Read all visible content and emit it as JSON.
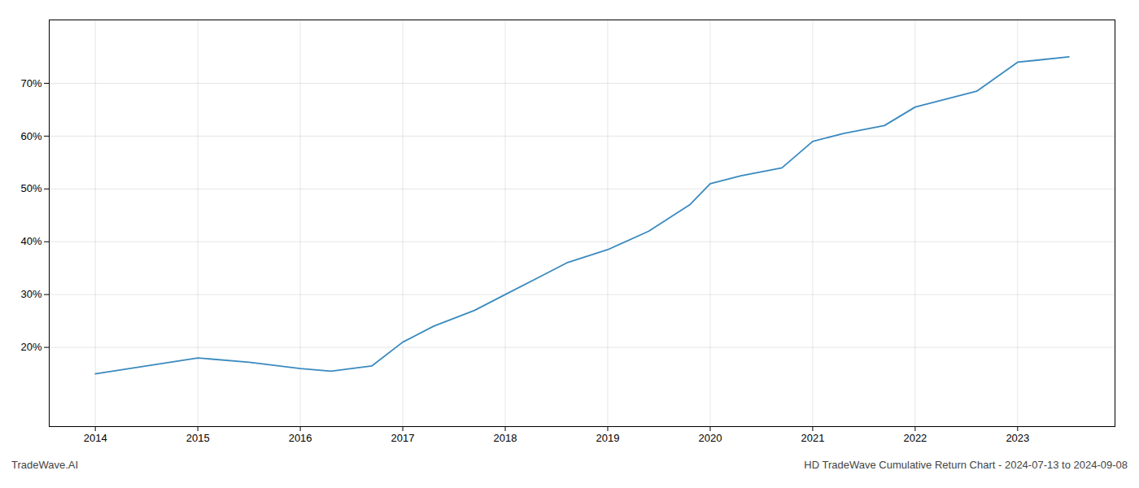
{
  "chart_data": {
    "type": "line",
    "x": [
      2014.0,
      2014.5,
      2015.0,
      2015.5,
      2016.0,
      2016.3,
      2016.7,
      2017.0,
      2017.3,
      2017.7,
      2018.0,
      2018.3,
      2018.6,
      2019.0,
      2019.4,
      2019.8,
      2020.0,
      2020.3,
      2020.7,
      2021.0,
      2021.3,
      2021.7,
      2022.0,
      2022.3,
      2022.6,
      2023.0,
      2023.5
    ],
    "values": [
      15.0,
      16.5,
      18.0,
      17.2,
      16.0,
      15.5,
      16.5,
      21.0,
      24.0,
      27.0,
      30.0,
      33.0,
      36.0,
      38.5,
      42.0,
      47.0,
      51.0,
      52.5,
      54.0,
      59.0,
      60.5,
      62.0,
      65.5,
      67.0,
      68.5,
      74.0,
      75.0
    ],
    "color": "#3a8abf",
    "xlim": [
      2013.55,
      2023.95
    ],
    "ylim": [
      5,
      82
    ],
    "xticks": [
      2014,
      2015,
      2016,
      2017,
      2018,
      2019,
      2020,
      2021,
      2022,
      2023
    ],
    "yticks": [
      {
        "value": 20,
        "label": "20%"
      },
      {
        "value": 30,
        "label": "30%"
      },
      {
        "value": 40,
        "label": "40%"
      },
      {
        "value": 50,
        "label": "50%"
      },
      {
        "value": 60,
        "label": "60%"
      },
      {
        "value": 70,
        "label": "70%"
      }
    ],
    "grid": true,
    "annotations": [
      "TradeWave.AI",
      "HD TradeWave Cumulative Return Chart - 2024-07-13 to 2024-09-08"
    ]
  }
}
